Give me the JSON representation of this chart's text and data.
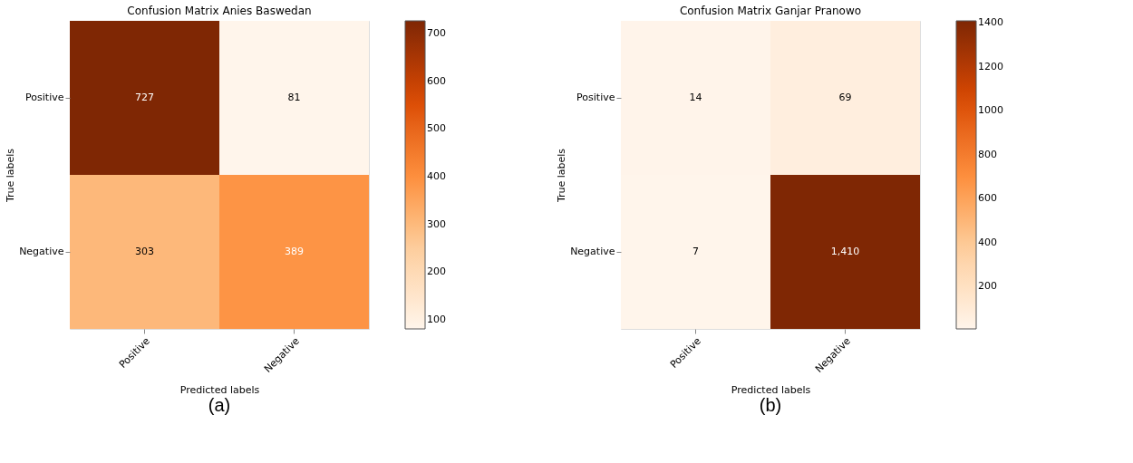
{
  "chart_data": [
    {
      "type": "heatmap",
      "title": "Confusion Matrix Anies Baswedan",
      "xlabel": "Predicted labels",
      "ylabel": "True labels",
      "categories": [
        "Positive",
        "Negative"
      ],
      "y_categories": [
        "Positive",
        "Negative"
      ],
      "cells": [
        [
          727,
          81
        ],
        [
          303,
          389
        ]
      ],
      "data_labels": true,
      "clim": [
        81,
        727
      ],
      "cticks": [
        100,
        200,
        300,
        400,
        500,
        600,
        700
      ],
      "annotations": [
        "(a)"
      ]
    },
    {
      "type": "heatmap",
      "title": "Confusion Matrix Ganjar Pranowo",
      "xlabel": "Predicted labels",
      "ylabel": "True labels",
      "categories": [
        "Positive",
        "Negative"
      ],
      "y_categories": [
        "Positive",
        "Negative"
      ],
      "cells": [
        [
          14,
          69
        ],
        [
          7,
          1410
        ]
      ],
      "cell_labels": [
        [
          "14",
          "69"
        ],
        [
          "7",
          "1,410"
        ]
      ],
      "clim": [
        7,
        1410
      ],
      "cticks": [
        200,
        400,
        600,
        800,
        1000,
        1200,
        1400
      ],
      "annotations": [
        "(b)"
      ]
    }
  ]
}
